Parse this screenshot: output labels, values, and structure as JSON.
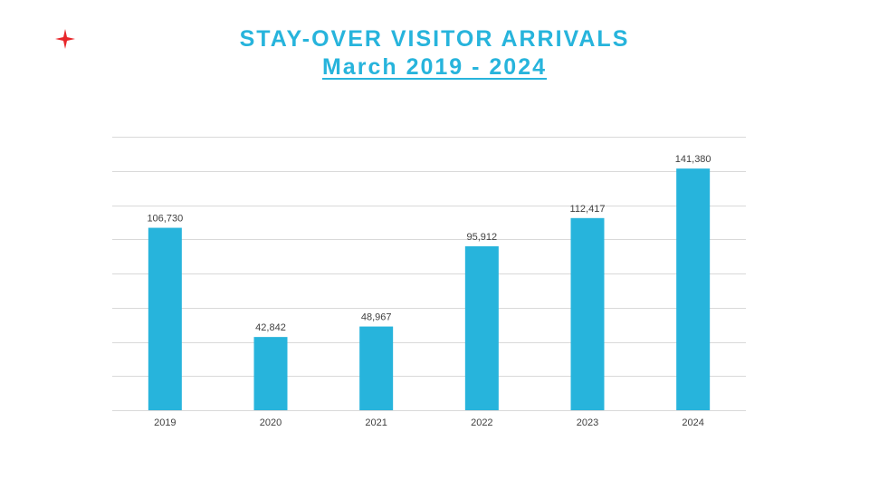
{
  "header": {
    "title": "STAY-OVER VISITOR ARRIVALS",
    "subtitle": "March 2019 - 2024"
  },
  "logo": {
    "icon": "red-four-point-star-icon",
    "color": "#e8262a"
  },
  "colors": {
    "bar": "#27b4dc",
    "title": "#27b4dc",
    "grid": "#d9d9d9"
  },
  "chart_data": {
    "type": "bar",
    "categories": [
      "2019",
      "2020",
      "2021",
      "2022",
      "2023",
      "2024"
    ],
    "values": [
      106730,
      42842,
      48967,
      95912,
      112417,
      141380
    ],
    "value_labels": [
      "106,730",
      "42,842",
      "48,967",
      "95,912",
      "112,417",
      "141,380"
    ],
    "title": "STAY-OVER VISITOR ARRIVALS",
    "xlabel": "",
    "ylabel": "",
    "ylim": [
      0,
      160000
    ],
    "grid": true,
    "y_tick_labels_shown": false,
    "legend": "none"
  }
}
